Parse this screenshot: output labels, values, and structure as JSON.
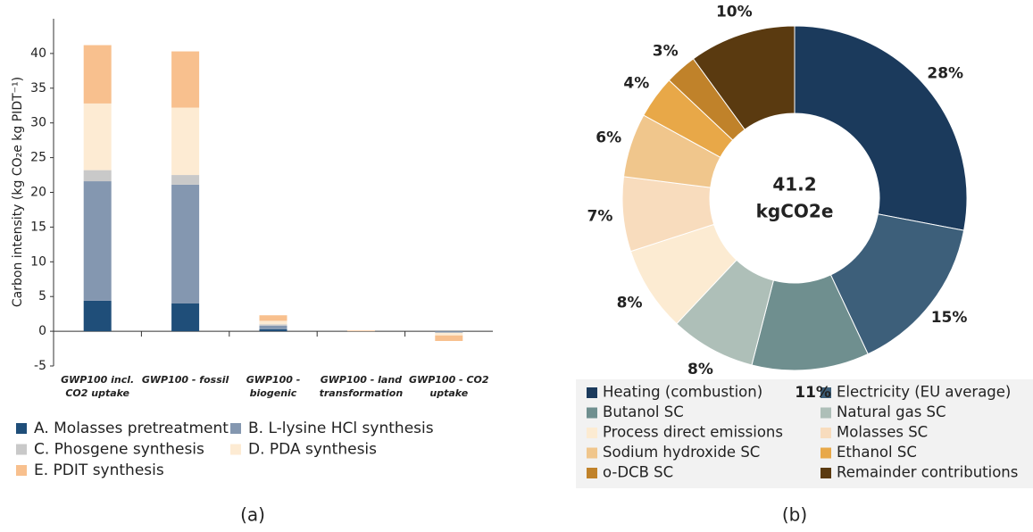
{
  "chart_data": [
    {
      "type": "stacked_bar",
      "panel_label": "(a)",
      "ylabel": "Carbon intensity (kg CO₂e kg PIDT⁻¹)",
      "categories": [
        "GWP100 incl. CO2 uptake",
        "GWP100 - fossil",
        "GWP100 - biogenic",
        "GWP100 - land transformation",
        "GWP100 - CO2 uptake"
      ],
      "series": [
        {
          "name": "A. Molasses pretreatment",
          "color": "#1f4e79",
          "values": [
            4.4,
            4.0,
            0.3,
            0,
            0
          ]
        },
        {
          "name": "B. L-lysine HCl synthesis",
          "color": "#8497b0",
          "values": [
            17.2,
            17.1,
            0.5,
            0,
            -0.2
          ]
        },
        {
          "name": "C. Phosgene synthesis",
          "color": "#c9c9c9",
          "values": [
            1.6,
            1.4,
            0.2,
            0,
            0
          ]
        },
        {
          "name": "D. PDA synthesis",
          "color": "#fdebd3",
          "values": [
            9.6,
            9.7,
            0.5,
            0,
            -0.4
          ]
        },
        {
          "name": "E. PDIT synthesis",
          "color": "#f8c08e",
          "values": [
            8.4,
            8.1,
            0.8,
            0.1,
            -0.8
          ]
        }
      ],
      "ylim": [
        -5,
        45
      ],
      "yticks": [
        -5,
        0,
        5,
        10,
        15,
        20,
        25,
        30,
        35,
        40
      ],
      "grid": false,
      "legend": "bottom"
    },
    {
      "type": "donut",
      "panel_label": "(b)",
      "center_text": [
        "41.2",
        "kgCO2e"
      ],
      "categories": [
        "Heating (combustion)",
        "Electricity (EU average)",
        "Butanol SC",
        "Natural gas SC",
        "Process direct emissions",
        "Molasses SC",
        "Sodium hydroxide SC",
        "Ethanol SC",
        "o-DCB SC",
        "Remainder contributions"
      ],
      "values": [
        28,
        15,
        11,
        8,
        8,
        7,
        6,
        4,
        3,
        10
      ],
      "value_labels": [
        "28%",
        "15%",
        "11%",
        "8%",
        "8%",
        "7%",
        "6%",
        "4%",
        "3%",
        "10%"
      ],
      "colors": [
        "#1b3a5c",
        "#3d5f7a",
        "#6f8f8f",
        "#aebfb8",
        "#fcebd2",
        "#f8dcbd",
        "#f0c68c",
        "#e8a848",
        "#c0822a",
        "#5a3a10"
      ],
      "legend": "bottom"
    }
  ]
}
